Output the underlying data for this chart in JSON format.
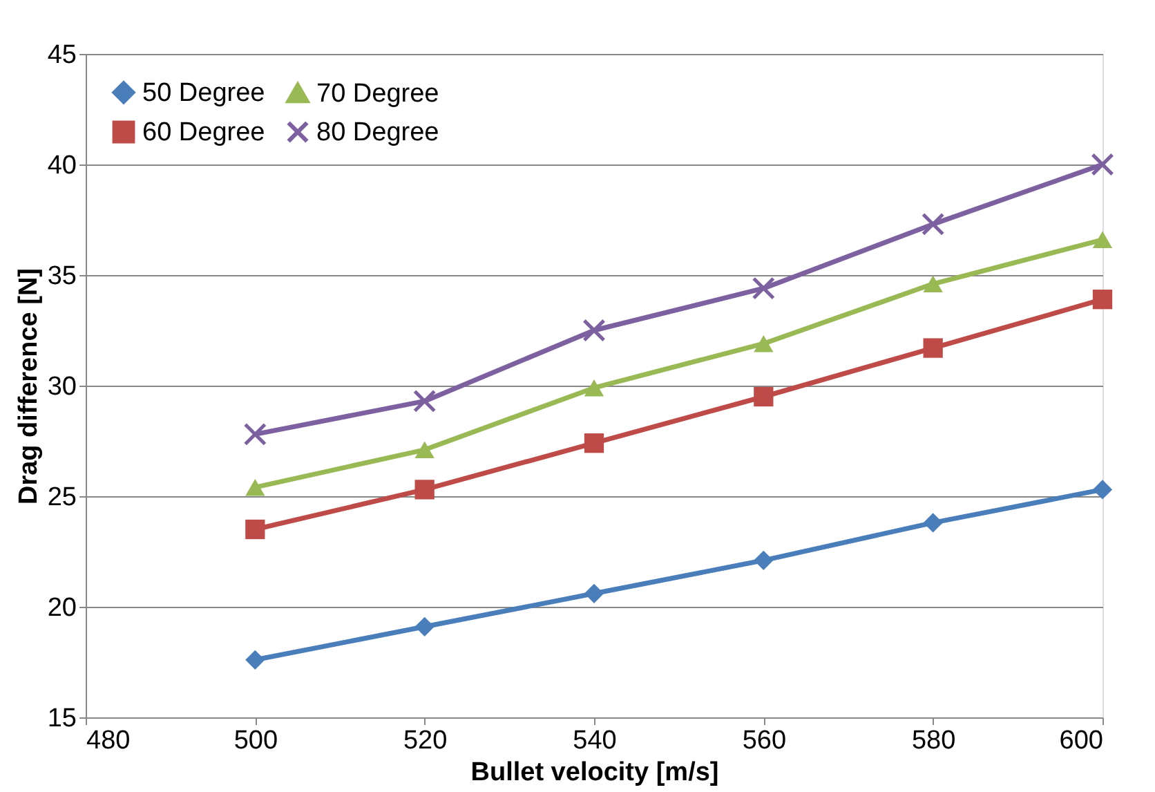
{
  "chart_data": {
    "type": "line",
    "xlabel": "Bullet velocity [m/s]",
    "ylabel": "Drag difference [N]",
    "x": [
      500,
      520,
      540,
      560,
      580,
      600
    ],
    "series": [
      {
        "name": "50 Degree",
        "color": "#4a7ebb",
        "marker": "diamond",
        "values": [
          17.6,
          19.1,
          20.6,
          22.1,
          23.8,
          25.3
        ]
      },
      {
        "name": "60 Degree",
        "color": "#be4b48",
        "marker": "square",
        "values": [
          23.5,
          25.3,
          27.4,
          29.5,
          31.7,
          33.9
        ]
      },
      {
        "name": "70 Degree",
        "color": "#98b954",
        "marker": "triangle",
        "values": [
          25.4,
          27.1,
          29.9,
          31.9,
          34.6,
          36.6
        ]
      },
      {
        "name": "80 Degree",
        "color": "#7d60a0",
        "marker": "cross",
        "values": [
          27.8,
          29.3,
          32.5,
          34.4,
          37.3,
          40.0
        ]
      }
    ],
    "xlim": [
      480,
      600
    ],
    "xticks": [
      480,
      500,
      520,
      540,
      560,
      580,
      600
    ],
    "ylim": [
      15,
      45
    ],
    "yticks": [
      15,
      20,
      25,
      30,
      35,
      40,
      45
    ],
    "grid": "y",
    "legend": "top left"
  }
}
